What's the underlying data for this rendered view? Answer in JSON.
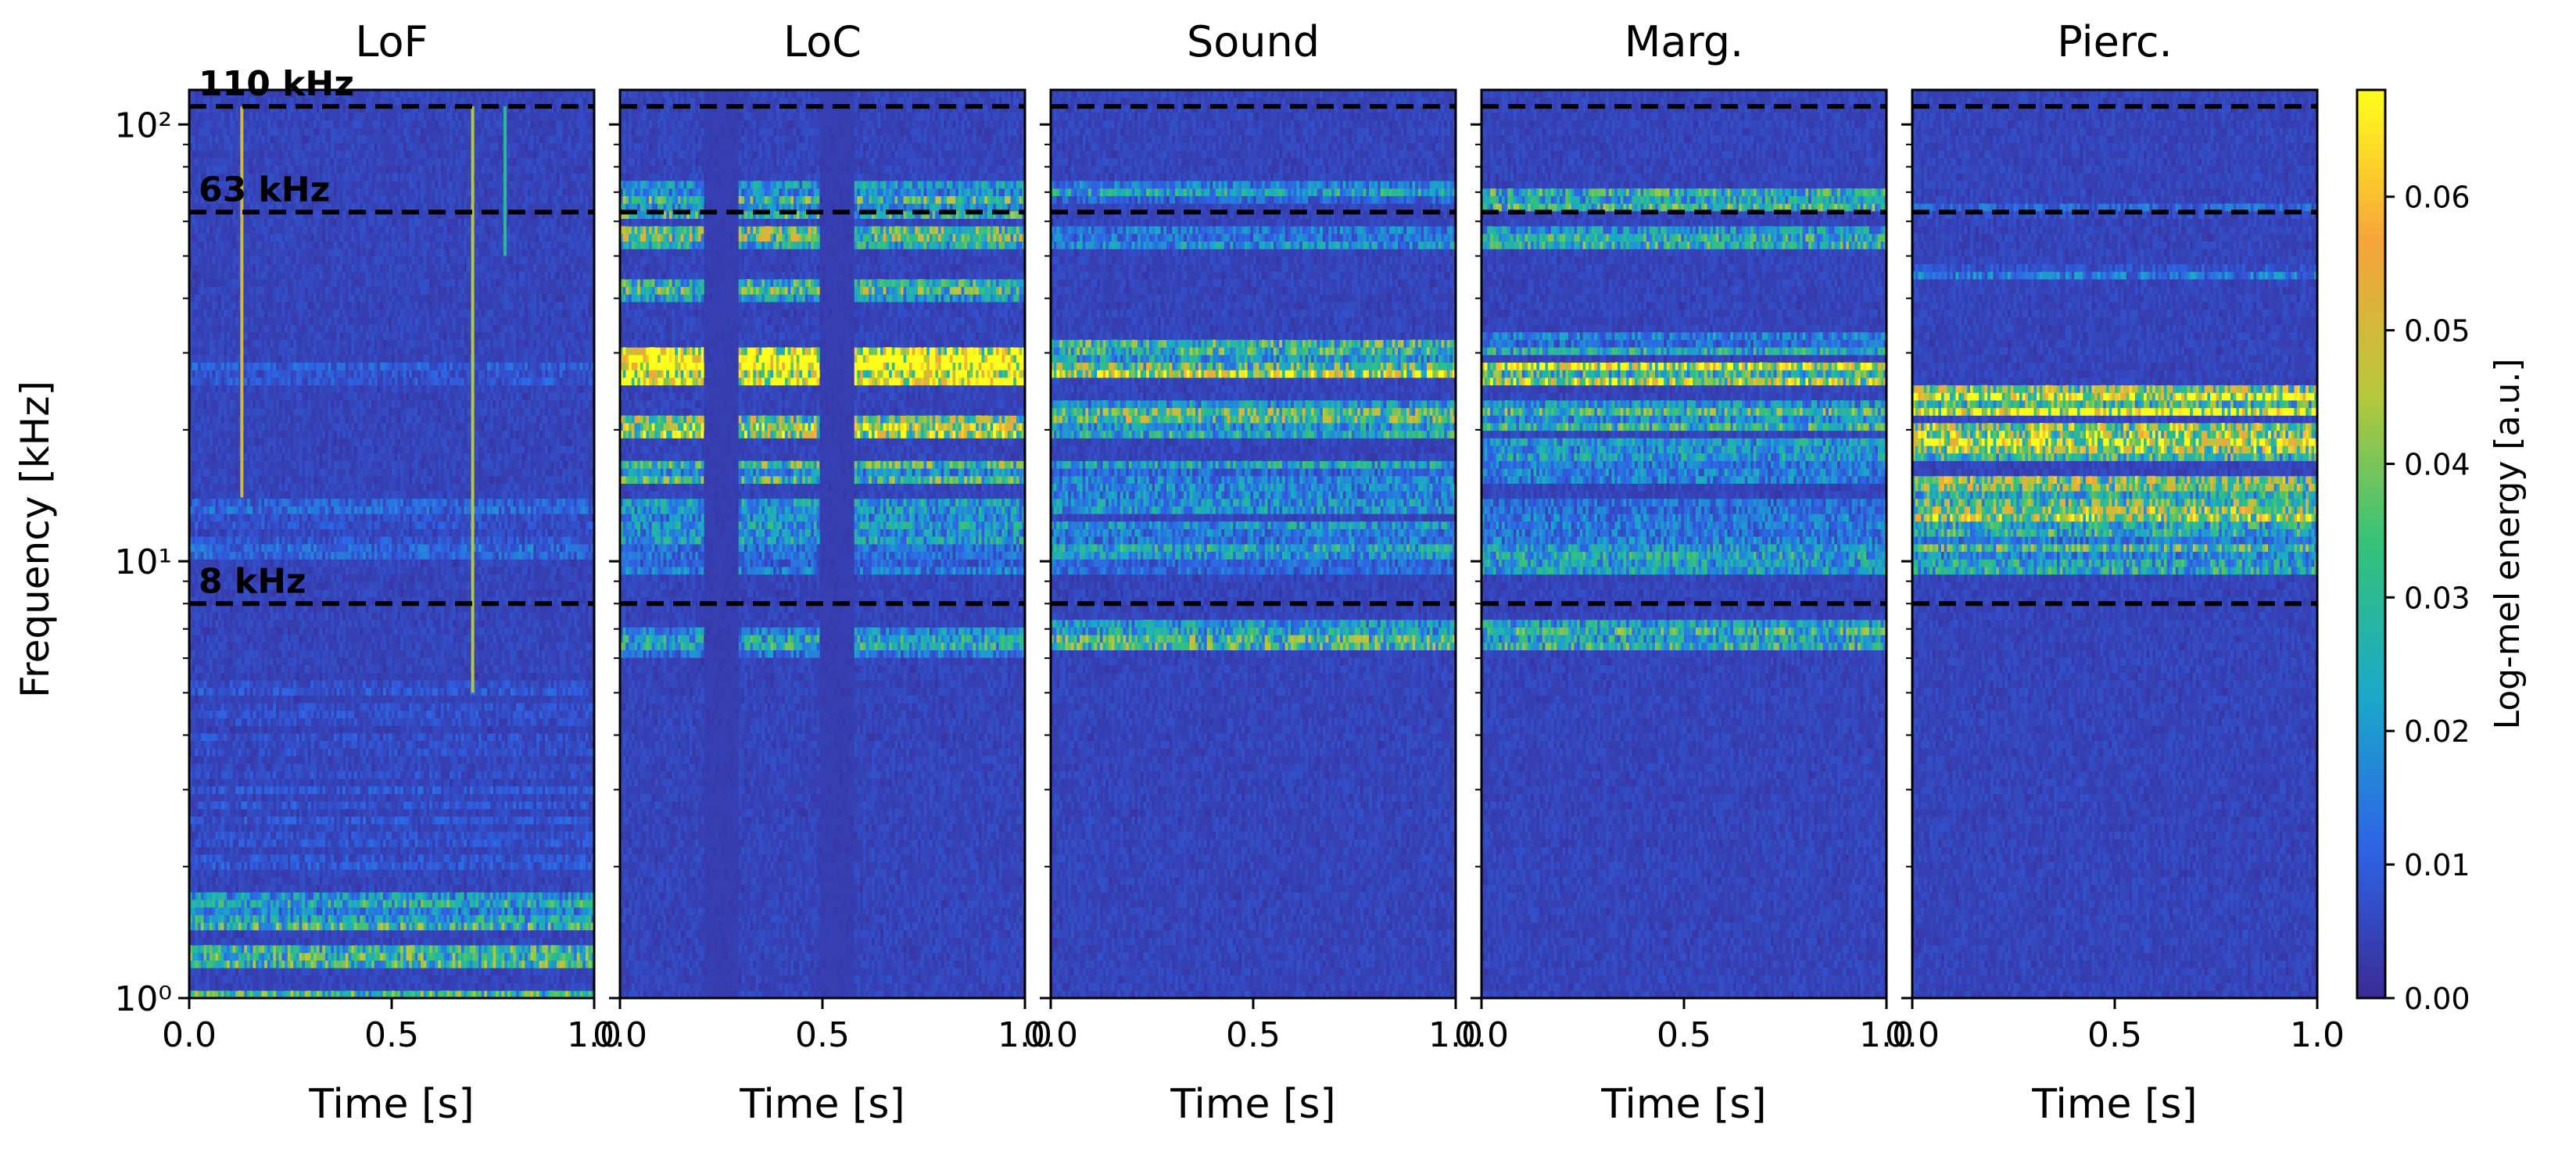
{
  "chart_data": {
    "type": "heatmap",
    "ylabel": "Frequency [kHz]",
    "xlabel": "Time [s]",
    "xlim": [
      0.0,
      1.0
    ],
    "ylim": [
      1,
      120
    ],
    "yscale": "log",
    "x_ticks": [
      {
        "value": 0.0,
        "label": "0.0"
      },
      {
        "value": 0.5,
        "label": "0.5"
      },
      {
        "value": 1.0,
        "label": "1.0"
      }
    ],
    "y_ticks": [
      {
        "value": 1,
        "label": "10⁰"
      },
      {
        "value": 10,
        "label": "10¹"
      },
      {
        "value": 100,
        "label": "10²"
      }
    ],
    "reference_lines": [
      {
        "value": 110,
        "label": "110 kHz"
      },
      {
        "value": 63,
        "label": "63 kHz"
      },
      {
        "value": 8,
        "label": "8 kHz"
      }
    ],
    "colorbar": {
      "label": "Log-mel energy [a.u.]",
      "range": [
        0.0,
        0.068
      ],
      "ticks": [
        {
          "value": 0.0,
          "label": "0.00"
        },
        {
          "value": 0.01,
          "label": "0.01"
        },
        {
          "value": 0.02,
          "label": "0.02"
        },
        {
          "value": 0.03,
          "label": "0.03"
        },
        {
          "value": 0.04,
          "label": "0.04"
        },
        {
          "value": 0.05,
          "label": "0.05"
        },
        {
          "value": 0.06,
          "label": "0.06"
        }
      ],
      "colors": [
        "#3b2b96",
        "#2e64e6",
        "#1aa9c9",
        "#34c27a",
        "#b8c83a",
        "#f7a43a",
        "#ffff1a"
      ]
    },
    "grid": false,
    "panels": [
      {
        "title": "LoF",
        "base_level": 0.004,
        "bands": [
          {
            "f_low": 1.0,
            "f_high": 1.05,
            "level": 0.03
          },
          {
            "f_low": 1.18,
            "f_high": 1.32,
            "level": 0.035
          },
          {
            "f_low": 1.45,
            "f_high": 1.75,
            "level": 0.025
          },
          {
            "f_low": 2.0,
            "f_high": 5.5,
            "level": 0.007
          },
          {
            "f_low": 10.0,
            "f_high": 14.0,
            "level": 0.01
          },
          {
            "f_low": 25.0,
            "f_high": 28.0,
            "level": 0.008
          }
        ],
        "gaps": [],
        "vertical_streaks": [
          {
            "t": 0.13,
            "f_low": 14,
            "f_high": 110,
            "level": 0.05
          },
          {
            "t": 0.7,
            "f_low": 5,
            "f_high": 110,
            "level": 0.045
          },
          {
            "t": 0.78,
            "f_low": 50,
            "f_high": 110,
            "level": 0.03
          }
        ]
      },
      {
        "title": "LoC",
        "base_level": 0.004,
        "bands": [
          {
            "f_low": 6.0,
            "f_high": 7.2,
            "level": 0.02
          },
          {
            "f_low": 9.5,
            "f_high": 14.0,
            "level": 0.018
          },
          {
            "f_low": 15.0,
            "f_high": 17.0,
            "level": 0.03
          },
          {
            "f_low": 19.0,
            "f_high": 22.0,
            "level": 0.04
          },
          {
            "f_low": 25.5,
            "f_high": 31.0,
            "level": 0.065
          },
          {
            "f_low": 40.0,
            "f_high": 44.0,
            "level": 0.03
          },
          {
            "f_low": 52.0,
            "f_high": 58.0,
            "level": 0.03
          },
          {
            "f_low": 60.0,
            "f_high": 75.0,
            "level": 0.03
          }
        ],
        "gaps": [
          {
            "t_start": 0.21,
            "t_end": 0.29
          },
          {
            "t_start": 0.49,
            "t_end": 0.58
          }
        ],
        "vertical_streaks": []
      },
      {
        "title": "Sound",
        "base_level": 0.004,
        "bands": [
          {
            "f_low": 6.2,
            "f_high": 7.3,
            "level": 0.03
          },
          {
            "f_low": 9.5,
            "f_high": 12.5,
            "level": 0.02
          },
          {
            "f_low": 13.0,
            "f_high": 17.0,
            "level": 0.02
          },
          {
            "f_low": 19.0,
            "f_high": 23.0,
            "level": 0.03
          },
          {
            "f_low": 26.0,
            "f_high": 29.0,
            "level": 0.055
          },
          {
            "f_low": 29.0,
            "f_high": 32.0,
            "level": 0.025
          },
          {
            "f_low": 52.0,
            "f_high": 58.0,
            "level": 0.02
          },
          {
            "f_low": 65.0,
            "f_high": 75.0,
            "level": 0.018
          }
        ],
        "gaps": [],
        "vertical_streaks": []
      },
      {
        "title": "Marg.",
        "base_level": 0.004,
        "bands": [
          {
            "f_low": 6.2,
            "f_high": 7.4,
            "level": 0.028
          },
          {
            "f_low": 9.5,
            "f_high": 14.0,
            "level": 0.022
          },
          {
            "f_low": 15.0,
            "f_high": 19.0,
            "level": 0.02
          },
          {
            "f_low": 20.0,
            "f_high": 23.0,
            "level": 0.035
          },
          {
            "f_low": 25.0,
            "f_high": 29.0,
            "level": 0.05
          },
          {
            "f_low": 30.0,
            "f_high": 33.0,
            "level": 0.02
          },
          {
            "f_low": 52.0,
            "f_high": 58.0,
            "level": 0.022
          },
          {
            "f_low": 64.0,
            "f_high": 72.0,
            "level": 0.025
          }
        ],
        "gaps": [],
        "vertical_streaks": []
      },
      {
        "title": "Pierc.",
        "base_level": 0.004,
        "bands": [
          {
            "f_low": 9.5,
            "f_high": 12.5,
            "level": 0.025
          },
          {
            "f_low": 12.5,
            "f_high": 16.0,
            "level": 0.045
          },
          {
            "f_low": 17.0,
            "f_high": 21.0,
            "level": 0.05
          },
          {
            "f_low": 22.0,
            "f_high": 25.5,
            "level": 0.055
          },
          {
            "f_low": 44.0,
            "f_high": 47.0,
            "level": 0.012
          },
          {
            "f_low": 60.0,
            "f_high": 66.0,
            "level": 0.01
          }
        ],
        "gaps": [],
        "vertical_streaks": []
      }
    ]
  }
}
